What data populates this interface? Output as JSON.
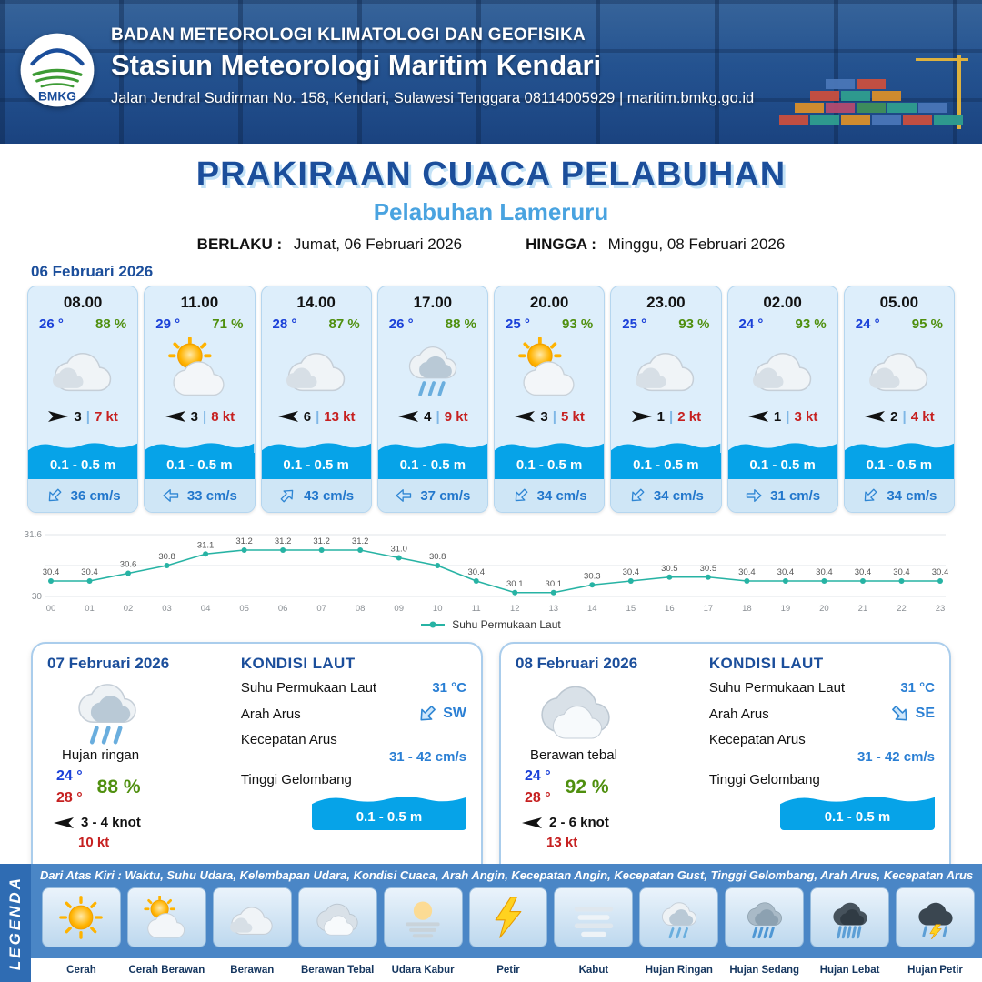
{
  "header": {
    "agency": "BADAN METEOROLOGI KLIMATOLOGI DAN GEOFISIKA",
    "station": "Stasiun Meteorologi Maritim Kendari",
    "address": "Jalan Jendral Sudirman No. 158, Kendari, Sulawesi Tenggara  08114005929 | maritim.bmkg.go.id",
    "logo_text": "BMKG"
  },
  "title": {
    "main": "PRAKIRAAN CUACA PELABUHAN",
    "subtitle": "Pelabuhan Lameruru",
    "valid_from_label": "BERLAKU :",
    "valid_from": "Jumat, 06 Februari 2026",
    "valid_to_label": "HINGGA :",
    "valid_to": "Minggu, 08 Februari 2026"
  },
  "day1": {
    "date": "06 Februari 2026",
    "cards": [
      {
        "time": "08.00",
        "temp": "26 °",
        "humidity": "88 %",
        "icon": "berawan-icon",
        "wind_dir": "E",
        "wind_min": "3",
        "wind_max": "7 kt",
        "wave": "0.1 - 0.5 m",
        "current_dir": "SW",
        "current": "36 cm/s"
      },
      {
        "time": "11.00",
        "temp": "29 °",
        "humidity": "71 %",
        "icon": "cerah-berawan-icon",
        "wind_dir": "W",
        "wind_min": "3",
        "wind_max": "8 kt",
        "wave": "0.1 - 0.5 m",
        "current_dir": "W",
        "current": "33 cm/s"
      },
      {
        "time": "14.00",
        "temp": "28 °",
        "humidity": "87 %",
        "icon": "berawan-icon",
        "wind_dir": "W",
        "wind_min": "6",
        "wind_max": "13 kt",
        "wave": "0.1 - 0.5 m",
        "current_dir": "NE",
        "current": "43 cm/s"
      },
      {
        "time": "17.00",
        "temp": "26 °",
        "humidity": "88 %",
        "icon": "hujan-ringan-icon",
        "wind_dir": "W",
        "wind_min": "4",
        "wind_max": "9 kt",
        "wave": "0.1 - 0.5 m",
        "current_dir": "W",
        "current": "37 cm/s"
      },
      {
        "time": "20.00",
        "temp": "25 °",
        "humidity": "93 %",
        "icon": "cerah-berawan-icon",
        "wind_dir": "W",
        "wind_min": "3",
        "wind_max": "5 kt",
        "wave": "0.1 - 0.5 m",
        "current_dir": "SW",
        "current": "34 cm/s"
      },
      {
        "time": "23.00",
        "temp": "25 °",
        "humidity": "93 %",
        "icon": "berawan-icon",
        "wind_dir": "E",
        "wind_min": "1",
        "wind_max": "2 kt",
        "wave": "0.1 - 0.5 m",
        "current_dir": "SW",
        "current": "34 cm/s"
      },
      {
        "time": "02.00",
        "temp": "24 °",
        "humidity": "93 %",
        "icon": "berawan-icon",
        "wind_dir": "W",
        "wind_min": "1",
        "wind_max": "3 kt",
        "wave": "0.1 - 0.5 m",
        "current_dir": "E",
        "current": "31 cm/s"
      },
      {
        "time": "05.00",
        "temp": "24 °",
        "humidity": "95 %",
        "icon": "berawan-icon",
        "wind_dir": "W",
        "wind_min": "2",
        "wind_max": "4 kt",
        "wave": "0.1 - 0.5 m",
        "current_dir": "SW",
        "current": "34 cm/s"
      }
    ]
  },
  "chart_data": {
    "type": "line",
    "x": [
      "00",
      "01",
      "02",
      "03",
      "04",
      "05",
      "06",
      "07",
      "08",
      "09",
      "10",
      "11",
      "12",
      "13",
      "14",
      "15",
      "16",
      "17",
      "18",
      "19",
      "20",
      "21",
      "22",
      "23"
    ],
    "series": [
      {
        "name": "Suhu Permukaan Laut",
        "values": [
          30.4,
          30.4,
          30.6,
          30.8,
          31.1,
          31.2,
          31.2,
          31.2,
          31.2,
          31.0,
          30.8,
          30.4,
          30.1,
          30.1,
          30.3,
          30.4,
          30.5,
          30.5,
          30.4,
          30.4,
          30.4,
          30.4,
          30.4,
          30.4
        ]
      }
    ],
    "xlabel": "",
    "ylabel": "",
    "ylim": [
      30,
      31.6
    ],
    "yticks": [
      31.6,
      30
    ],
    "ygrid": [
      30,
      30.8,
      31.6
    ],
    "color": "#27b3a4",
    "legend_position": "bottom"
  },
  "days": [
    {
      "date": "07 Februari 2026",
      "icon": "hujan-ringan-icon",
      "condition": "Hujan ringan",
      "temp_min": "24 °",
      "temp_max": "28 °",
      "humidity": "88 %",
      "wind_dir": "W",
      "wind_range": "3 - 4 knot",
      "gust": "10 kt",
      "sea": {
        "title": "KONDISI LAUT",
        "sst_label": "Suhu Permukaan Laut",
        "sst": "31 °C",
        "current_dir_label": "Arah Arus",
        "current_dir": "SW",
        "current_speed_label": "Kecepatan Arus",
        "current_speed": "31 - 42 cm/s",
        "wave_label": "Tinggi Gelombang",
        "wave": "0.1 - 0.5 m"
      }
    },
    {
      "date": "08 Februari 2026",
      "icon": "berawan-tebal-icon",
      "condition": "Berawan tebal",
      "temp_min": "24 °",
      "temp_max": "28 °",
      "humidity": "92 %",
      "wind_dir": "W",
      "wind_range": "2 - 6 knot",
      "gust": "13 kt",
      "sea": {
        "title": "KONDISI LAUT",
        "sst_label": "Suhu Permukaan Laut",
        "sst": "31 °C",
        "current_dir_label": "Arah Arus",
        "current_dir": "SE",
        "current_speed_label": "Kecepatan Arus",
        "current_speed": "31 - 42 cm/s",
        "wave_label": "Tinggi Gelombang",
        "wave": "0.1 - 0.5 m"
      }
    }
  ],
  "legend": {
    "title": "LEGENDA",
    "caption": "Dari Atas Kiri : Waktu, Suhu Udara, Kelembapan Udara, Kondisi Cuaca, Arah Angin, Kecepatan Angin, Kecepatan Gust, Tinggi Gelombang, Arah Arus, Kecepatan Arus",
    "items": [
      {
        "label": "Cerah",
        "icon": "cerah-icon"
      },
      {
        "label": "Cerah Berawan",
        "icon": "cerah-berawan-icon"
      },
      {
        "label": "Berawan",
        "icon": "berawan-icon"
      },
      {
        "label": "Berawan Tebal",
        "icon": "berawan-tebal-icon"
      },
      {
        "label": "Udara Kabur",
        "icon": "udara-kabur-icon"
      },
      {
        "label": "Petir",
        "icon": "petir-icon"
      },
      {
        "label": "Kabut",
        "icon": "kabut-icon"
      },
      {
        "label": "Hujan Ringan",
        "icon": "hujan-ringan-icon"
      },
      {
        "label": "Hujan Sedang",
        "icon": "hujan-sedang-icon"
      },
      {
        "label": "Hujan Lebat",
        "icon": "hujan-lebat-icon"
      },
      {
        "label": "Hujan Petir",
        "icon": "hujan-petir-icon"
      }
    ]
  },
  "colors": {
    "header_navy": "#1d4a8c",
    "title_blue": "#1b4e9b",
    "subtitle_blue": "#49a3e0",
    "temp_blue": "#1a40d8",
    "humidity_green": "#4f8f0e",
    "max_red": "#c62020",
    "wave_blue": "#06a3e8",
    "current_blue": "#2277cc",
    "chart_teal": "#27b3a4",
    "legend_bar_blue": "#4a86c6"
  }
}
